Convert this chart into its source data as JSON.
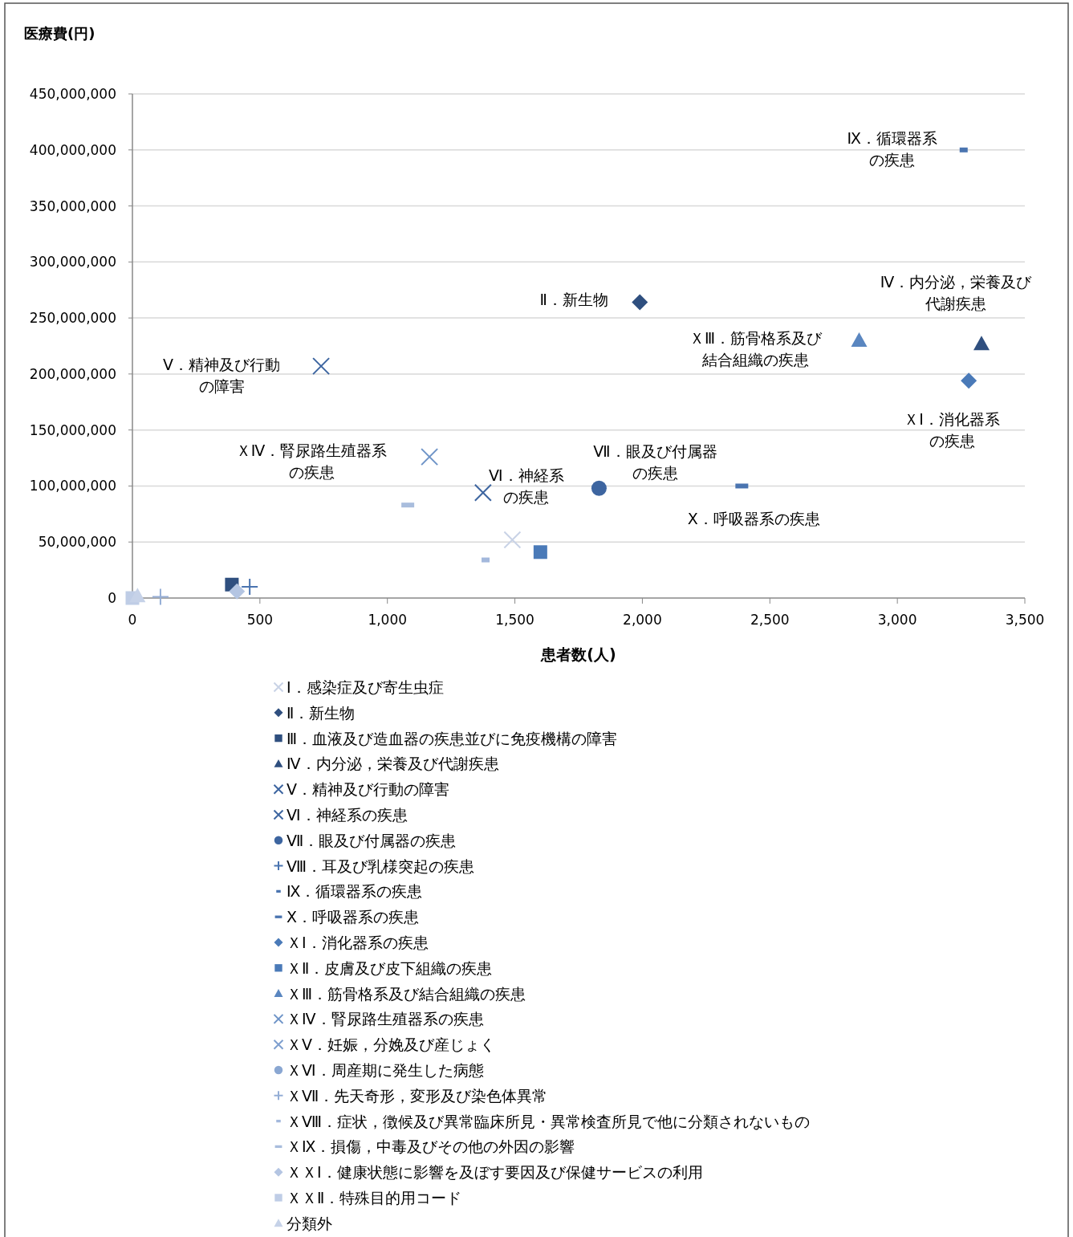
{
  "chart_data": {
    "type": "scatter",
    "ylabel": "医療費(円)",
    "xlabel": "患者数(人)",
    "xlim": [
      0,
      3500
    ],
    "ylim": [
      0,
      450000000
    ],
    "grid": "y",
    "legend": "bottom",
    "xticks": [
      {
        "value": 0,
        "label": "0"
      },
      {
        "value": 500,
        "label": "500"
      },
      {
        "value": 1000,
        "label": "1,000"
      },
      {
        "value": 1500,
        "label": "1,500"
      },
      {
        "value": 2000,
        "label": "2,000"
      },
      {
        "value": 2500,
        "label": "2,500"
      },
      {
        "value": 3000,
        "label": "3,000"
      },
      {
        "value": 3500,
        "label": "3,500"
      }
    ],
    "yticks": [
      {
        "value": 0,
        "label": "0"
      },
      {
        "value": 50000000,
        "label": "50,000,000"
      },
      {
        "value": 100000000,
        "label": "100,000,000"
      },
      {
        "value": 150000000,
        "label": "150,000,000"
      },
      {
        "value": 200000000,
        "label": "200,000,000"
      },
      {
        "value": 250000000,
        "label": "250,000,000"
      },
      {
        "value": 300000000,
        "label": "300,000,000"
      },
      {
        "value": 350000000,
        "label": "350,000,000"
      },
      {
        "value": 400000000,
        "label": "400,000,000"
      },
      {
        "value": 450000000,
        "label": "450,000,000"
      }
    ],
    "series": [
      {
        "name": "Ⅰ．感染症及び寄生虫症",
        "color": "#c9d3e6",
        "marker": "cross",
        "x": [
          1490
        ],
        "values": [
          52000000
        ]
      },
      {
        "name": "Ⅱ．新生物",
        "color": "#2f4f7f",
        "marker": "diamond",
        "x": [
          1990
        ],
        "values": [
          264000000
        ]
      },
      {
        "name": "Ⅲ．血液及び造血器の疾患並びに免疫機構の障害",
        "color": "#2f4f7f",
        "marker": "square",
        "x": [
          390
        ],
        "values": [
          12000000
        ]
      },
      {
        "name": "Ⅳ．内分泌，栄養及び代謝疾患",
        "color": "#2f4f7f",
        "marker": "triangle",
        "x": [
          3330
        ],
        "values": [
          227000000
        ]
      },
      {
        "name": "Ⅴ．精神及び行動の障害",
        "color": "#3d65a0",
        "marker": "cross",
        "x": [
          740
        ],
        "values": [
          207000000
        ]
      },
      {
        "name": "Ⅵ．神経系の疾患",
        "color": "#3d65a0",
        "marker": "cross",
        "x": [
          1375
        ],
        "values": [
          94000000
        ]
      },
      {
        "name": "Ⅶ．眼及び付属器の疾患",
        "color": "#3d65a0",
        "marker": "circle",
        "x": [
          1830
        ],
        "values": [
          98000000
        ]
      },
      {
        "name": "Ⅷ．耳及び乳様突起の疾患",
        "color": "#4a74b0",
        "marker": "plus",
        "x": [
          460
        ],
        "values": [
          10000000
        ]
      },
      {
        "name": "Ⅸ．循環器系の疾患",
        "color": "#4a74b0",
        "marker": "square",
        "x": [
          3260
        ],
        "values": [
          400000000
        ]
      },
      {
        "name": "Ⅹ．呼吸器系の疾患",
        "color": "#4a74b0",
        "marker": "square",
        "x": [
          2390
        ],
        "values": [
          100000000
        ]
      },
      {
        "name": "ＸⅠ．消化器系の疾患",
        "color": "#4a7ab8",
        "marker": "diamond",
        "x": [
          3280
        ],
        "values": [
          194000000
        ]
      },
      {
        "name": "ＸⅡ．皮膚及び皮下組織の疾患",
        "color": "#4a7ab8",
        "marker": "square",
        "x": [
          1600
        ],
        "values": [
          41000000
        ]
      },
      {
        "name": "ＸⅢ．筋骨格系及び結合組織の疾患",
        "color": "#5a86c0",
        "marker": "triangle",
        "x": [
          2850
        ],
        "values": [
          230000000
        ]
      },
      {
        "name": "ＸⅣ．腎尿路生殖器系の疾患",
        "color": "#6d93c7",
        "marker": "cross",
        "x": [
          1165
        ],
        "values": [
          126000000
        ]
      },
      {
        "name": "ＸⅤ．妊娠，分娩及び産じょく",
        "color": "#7e9fcf",
        "marker": "cross",
        "x": [
          null
        ],
        "values": [
          null
        ]
      },
      {
        "name": "ＸⅥ．周産期に発生した病態",
        "color": "#8aa7d2",
        "marker": "circle",
        "x": [
          null
        ],
        "values": [
          null
        ]
      },
      {
        "name": "ＸⅦ．先天奇形，変形及び染色体異常",
        "color": "#95aed6",
        "marker": "plus",
        "x": [
          110
        ],
        "values": [
          1000000
        ]
      },
      {
        "name": "ＸⅧ．症状，徴候及び異常臨床所見・異常検査所見で他に分類されないもの",
        "color": "#a3b8dc",
        "marker": "square",
        "x": [
          1385
        ],
        "values": [
          34000000
        ]
      },
      {
        "name": "ＸⅨ．損傷，中毒及びその他の外因の影響",
        "color": "#a9bddd",
        "marker": "square",
        "x": [
          1080
        ],
        "values": [
          83000000
        ]
      },
      {
        "name": "ＸＸⅠ．健康状態に影響を及ぼす要因及び保健サービスの利用",
        "color": "#b4c5e2",
        "marker": "diamond",
        "x": [
          410
        ],
        "values": [
          6000000
        ]
      },
      {
        "name": "ＸＸⅡ．特殊目的用コード",
        "color": "#bfcde6",
        "marker": "square",
        "x": [
          0
        ],
        "values": [
          0
        ]
      },
      {
        "name": "分類外",
        "color": "#c6d2e8",
        "marker": "triangle",
        "x": [
          20
        ],
        "values": [
          2000000
        ]
      }
    ],
    "annotations": [
      {
        "text": "Ⅸ．循環器系の疾患",
        "x": 3260,
        "y": 400000000
      },
      {
        "text": "Ⅱ．新生物",
        "x": 1990,
        "y": 264000000
      },
      {
        "text": "Ⅳ．内分泌，栄養及び代謝疾患",
        "x": 3330,
        "y": 227000000
      },
      {
        "text": "ＸⅢ．筋骨格系及び結合組織の疾患",
        "x": 2850,
        "y": 230000000
      },
      {
        "text": "Ⅴ．精神及び行動の障害",
        "x": 740,
        "y": 207000000
      },
      {
        "text": "ＸⅠ．消化器系の疾患",
        "x": 3280,
        "y": 194000000
      },
      {
        "text": "ＸⅣ．腎尿路生殖器系の疾患",
        "x": 1165,
        "y": 126000000
      },
      {
        "text": "Ⅶ．眼及び付属器の疾患",
        "x": 1830,
        "y": 98000000
      },
      {
        "text": "Ⅵ．神経系の疾患",
        "x": 1375,
        "y": 94000000
      },
      {
        "text": "Ⅹ．呼吸器系の疾患",
        "x": 2390,
        "y": 100000000
      }
    ]
  }
}
